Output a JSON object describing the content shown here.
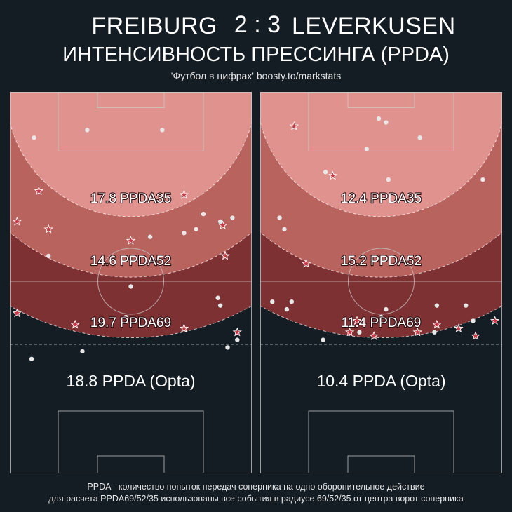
{
  "header": {
    "home_team": "FREIBURG",
    "score": "2 : 3",
    "away_team": "LEVERKUSEN",
    "subtitle": "ИНТЕНСИВНОСТЬ ПРЕССИНГА (PPDA)",
    "source": "'Футбол в цифрах' boosty.to/markstats"
  },
  "footer": {
    "line1": "PPDA - количество попыток передач соперника на одно оборонительное действие",
    "line2": "для расчета PPDA69/52/35 использованы все события в радиусе 69/52/35 от центра ворот соперника"
  },
  "colors": {
    "background": "#141d24",
    "zone35": "#e0938e",
    "zone52": "#b9635f",
    "zone69": "#7e3133",
    "pitch_lines": "#c9c9c9",
    "event_dot": "#e8e8e8",
    "event_star": "#c73a45"
  },
  "chart_data": [
    {
      "type": "scatter",
      "team": "FREIBURG",
      "ppda35_label": "17.8 PPDA35",
      "ppda52_label": "14.6 PPDA52",
      "ppda69_label": "19.7 PPDA69",
      "opta_label": "18.8 PPDA (Opta)",
      "ppda35": 17.8,
      "ppda52": 14.6,
      "ppda69": 19.7,
      "ppda_opta": 18.8,
      "x_range": [
        0,
        100
      ],
      "y_range": [
        0,
        100
      ],
      "series": [
        {
          "marker": "dot",
          "points": [
            [
              10,
              12
            ],
            [
              32,
              10
            ],
            [
              63,
              10
            ],
            [
              80,
              32
            ],
            [
              72,
              37
            ],
            [
              87,
              34
            ],
            [
              92,
              33
            ],
            [
              58,
              38
            ],
            [
              77,
              36
            ],
            [
              16,
              43
            ],
            [
              50,
              51
            ],
            [
              86,
              54
            ],
            [
              87,
              56
            ],
            [
              48,
              59
            ],
            [
              94,
              65
            ],
            [
              90,
              67
            ],
            [
              30,
              68
            ],
            [
              9,
              70
            ]
          ]
        },
        {
          "marker": "star",
          "points": [
            [
              12,
              26
            ],
            [
              72,
              27
            ],
            [
              3,
              34
            ],
            [
              16,
              36
            ],
            [
              50,
              39
            ],
            [
              88,
              35
            ],
            [
              89,
              43
            ],
            [
              3,
              58
            ],
            [
              27,
              61
            ],
            [
              72,
              62
            ],
            [
              94,
              63
            ]
          ]
        }
      ]
    },
    {
      "type": "scatter",
      "team": "LEVERKUSEN",
      "ppda35_label": "12.4 PPDA35",
      "ppda52_label": "15.2 PPDA52",
      "ppda69_label": "11.4 PPDA69",
      "opta_label": "10.4 PPDA (Opta)",
      "ppda35": 12.4,
      "ppda52": 15.2,
      "ppda69": 11.4,
      "ppda_opta": 10.4,
      "x_range": [
        0,
        100
      ],
      "y_range": [
        0,
        100
      ],
      "series": [
        {
          "marker": "dot",
          "points": [
            [
              49,
              7
            ],
            [
              52,
              8
            ],
            [
              66,
              12
            ],
            [
              44,
              15
            ],
            [
              27,
              21
            ],
            [
              53,
              23
            ],
            [
              92,
              23
            ],
            [
              8,
              33
            ],
            [
              10,
              36
            ],
            [
              5,
              55
            ],
            [
              11,
              57
            ],
            [
              13,
              55
            ],
            [
              50,
              59
            ],
            [
              52,
              57
            ],
            [
              73,
              56
            ],
            [
              85,
              56
            ],
            [
              88,
              60
            ],
            [
              72,
              63
            ],
            [
              41,
              63
            ],
            [
              26,
              65
            ]
          ]
        },
        {
          "marker": "star",
          "points": [
            [
              14,
              9
            ],
            [
              30,
              22
            ],
            [
              19,
              45
            ],
            [
              40,
              60
            ],
            [
              37,
              63
            ],
            [
              47,
              64
            ],
            [
              65,
              63
            ],
            [
              73,
              61
            ],
            [
              82,
              62
            ],
            [
              89,
              64
            ],
            [
              97,
              60
            ]
          ]
        }
      ]
    }
  ]
}
